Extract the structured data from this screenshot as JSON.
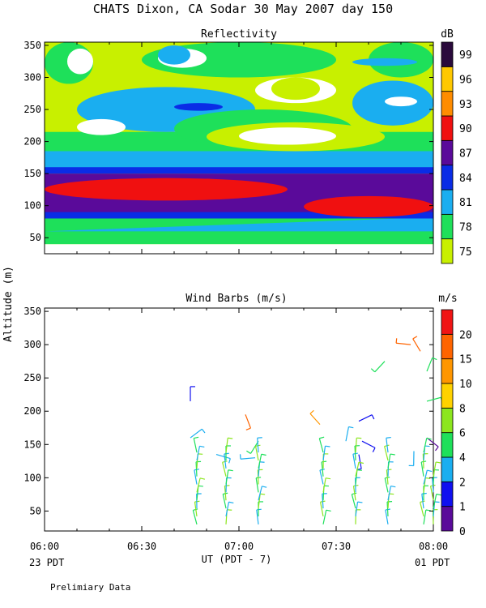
{
  "title": "CHATS Dixon, CA  Sodar  30 May 2007  day 150",
  "ylabel": "Altitude (m)",
  "xlabel": "UT  (PDT - 7)",
  "left_time_note": "23 PDT",
  "right_time_note": "01 PDT",
  "footer": "Prelimiary Data",
  "chart_data": [
    {
      "type": "heatmap",
      "title": "Reflectivity",
      "unit": "dB",
      "x": [
        "06:00",
        "06:05",
        "06:10",
        "06:15",
        "06:20",
        "06:25",
        "06:30",
        "06:35",
        "06:40",
        "06:45",
        "06:50",
        "06:55",
        "07:00",
        "07:05",
        "07:10",
        "07:15",
        "07:20",
        "07:25",
        "07:30",
        "07:35",
        "07:40",
        "07:45",
        "07:50",
        "07:55",
        "08:00"
      ],
      "y": [
        40,
        50,
        60,
        70,
        80,
        90,
        100,
        110,
        120,
        130,
        140,
        150,
        160,
        170,
        180,
        190,
        200,
        210,
        220,
        230,
        240,
        250,
        260,
        270,
        280,
        290,
        300,
        310,
        320,
        330,
        340,
        350
      ],
      "xticks": [
        "",
        "",
        "",
        "",
        "",
        ""
      ],
      "yticks": [
        "50",
        "100",
        "150",
        "200",
        "250",
        "300",
        "350"
      ],
      "ylim": [
        25,
        355
      ],
      "colorbar": {
        "labels": [
          "75",
          "78",
          "81",
          "84",
          "87",
          "90",
          "93",
          "96",
          "99"
        ],
        "colors": [
          "#c8f000",
          "#1ee05a",
          "#1aaef0",
          "#0a2ce6",
          "#5a0a9a",
          "#f01010",
          "#ff8c00",
          "#ffc800",
          "#2a0a3c"
        ]
      },
      "rows": [
        "1111111111111111111111111",
        "1111111111111111111111111",
        "1111112222222222222222222",
        "2222222222222233333333333",
        "3333333334444444444444444",
        "4444444444444455555544444",
        "5555555555555555555555555",
        "5555555555555555555555555",
        "4444444444444444444444444",
        "4444444444444444444444444",
        "3333333333333333333333333",
        "3333333333333333333333333",
        "2222222222222222222222222",
        "2222222222222222222222222",
        "1111111111111111111111111",
        "1111111111111111111111111",
        "1111111111111111111111111",
        "1111111111111111111111111",
        "1111111111111111111111111",
        "1111111111111111111111111",
        "1111111111111111111111111",
        "1111111111111111111111111",
        "1111111111111111111111111",
        "1111111111111111111111111",
        "1111111111111111111111111",
        "1111111111111111111111111",
        "1111111111111111111111111",
        "1111111111111111111111111",
        "1111111111111111111111111",
        "1111111111111111111111111",
        "1111111111111111111111111",
        "1111111111111111111111111"
      ],
      "patches": [
        {
          "c": 0,
          "x0": "06:00",
          "x1": "08:00",
          "y0": 40,
          "y1": 355,
          "shape": "rect"
        },
        {
          "c": 1,
          "x0": "06:00",
          "x1": "08:00",
          "y0": 40,
          "y1": 85,
          "shape": "rect"
        },
        {
          "c": 2,
          "x0": "06:00",
          "x1": "08:00",
          "y0": 60,
          "y1": 82,
          "shape": "wedge",
          "from": "right"
        },
        {
          "c": 3,
          "x0": "06:00",
          "x1": "08:00",
          "y0": 80,
          "y1": 140,
          "shape": "rect"
        },
        {
          "c": 4,
          "x0": "06:00",
          "x1": "08:00",
          "y0": 90,
          "y1": 150,
          "shape": "rect"
        },
        {
          "c": 5,
          "x0": "06:00",
          "x1": "07:15",
          "y0": 108,
          "y1": 143,
          "shape": "ellipse"
        },
        {
          "c": 5,
          "x0": "07:20",
          "x1": "08:00",
          "y0": 82,
          "y1": 115,
          "shape": "ellipse"
        },
        {
          "c": 3,
          "x0": "06:00",
          "x1": "08:00",
          "y0": 150,
          "y1": 185,
          "shape": "rect"
        },
        {
          "c": 2,
          "x0": "06:00",
          "x1": "08:00",
          "y0": 160,
          "y1": 200,
          "shape": "rect"
        },
        {
          "c": 1,
          "x0": "06:00",
          "x1": "08:00",
          "y0": 185,
          "y1": 215,
          "shape": "rect"
        },
        {
          "c": 2,
          "x0": "06:10",
          "x1": "07:05",
          "y0": 215,
          "y1": 285,
          "shape": "ellipse"
        },
        {
          "c": 2,
          "x0": "07:35",
          "x1": "08:00",
          "y0": 225,
          "y1": 295,
          "shape": "ellipse"
        },
        {
          "c": 1,
          "x0": "06:40",
          "x1": "07:35",
          "y0": 190,
          "y1": 250,
          "shape": "ellipse"
        },
        {
          "c": 0,
          "x0": "06:50",
          "x1": "07:45",
          "y0": 185,
          "y1": 230,
          "shape": "ellipse"
        },
        {
          "c": 9,
          "x0": "07:00",
          "x1": "07:30",
          "y0": 195,
          "y1": 222,
          "shape": "ellipse"
        },
        {
          "c": 9,
          "x0": "06:10",
          "x1": "06:25",
          "y0": 210,
          "y1": 235,
          "shape": "ellipse"
        },
        {
          "c": 3,
          "x0": "06:40",
          "x1": "06:55",
          "y0": 248,
          "y1": 260,
          "shape": "ellipse"
        },
        {
          "c": 1,
          "x0": "06:00",
          "x1": "06:15",
          "y0": 290,
          "y1": 355,
          "shape": "ellipse"
        },
        {
          "c": 9,
          "x0": "06:07",
          "x1": "06:15",
          "y0": 305,
          "y1": 345,
          "shape": "ellipse"
        },
        {
          "c": 1,
          "x0": "06:30",
          "x1": "07:30",
          "y0": 300,
          "y1": 355,
          "shape": "ellipse"
        },
        {
          "c": 9,
          "x0": "06:35",
          "x1": "06:50",
          "y0": 315,
          "y1": 345,
          "shape": "ellipse"
        },
        {
          "c": 2,
          "x0": "06:35",
          "x1": "06:45",
          "y0": 320,
          "y1": 350,
          "shape": "ellipse"
        },
        {
          "c": 9,
          "x0": "07:05",
          "x1": "07:30",
          "y0": 260,
          "y1": 300,
          "shape": "ellipse"
        },
        {
          "c": 0,
          "x0": "07:10",
          "x1": "07:25",
          "y0": 265,
          "y1": 300,
          "shape": "ellipse"
        },
        {
          "c": 1,
          "x0": "07:40",
          "x1": "08:00",
          "y0": 300,
          "y1": 355,
          "shape": "ellipse"
        },
        {
          "c": 9,
          "x0": "07:45",
          "x1": "07:55",
          "y0": 255,
          "y1": 270,
          "shape": "ellipse"
        },
        {
          "c": 2,
          "x0": "07:35",
          "x1": "07:55",
          "y0": 318,
          "y1": 330,
          "shape": "ellipse"
        }
      ]
    },
    {
      "type": "scatter",
      "title": "Wind Barbs (m/s)",
      "unit": "m/s",
      "xticks": [
        "06:00",
        "06:30",
        "07:00",
        "07:30",
        "08:00"
      ],
      "yticks": [
        "50",
        "100",
        "150",
        "200",
        "250",
        "300",
        "350"
      ],
      "ylim": [
        20,
        355
      ],
      "colorbar": {
        "labels": [
          "0",
          "1",
          "2",
          "4",
          "6",
          "8",
          "10",
          "15",
          "20"
        ],
        "colors": [
          "#5a0a9a",
          "#1010f0",
          "#1aaef0",
          "#1ee05a",
          "#8ce61e",
          "#ffd200",
          "#ff9600",
          "#ff6400",
          "#f01414"
        ]
      },
      "barbs": [
        {
          "t": "06:45",
          "h": 215,
          "c": 1
        },
        {
          "t": "06:45",
          "h": 160,
          "c": 2
        },
        {
          "t": "06:53",
          "h": 135,
          "c": 2
        },
        {
          "t": "07:02",
          "h": 195,
          "c": 7
        },
        {
          "t": "07:06",
          "h": 155,
          "c": 3
        },
        {
          "t": "07:05",
          "h": 130,
          "c": 2
        },
        {
          "t": "07:25",
          "h": 180,
          "c": 6
        },
        {
          "t": "07:33",
          "h": 155,
          "c": 2
        },
        {
          "t": "07:37",
          "h": 185,
          "c": 1
        },
        {
          "t": "07:38",
          "h": 155,
          "c": 1
        },
        {
          "t": "07:37",
          "h": 135,
          "c": 1
        },
        {
          "t": "07:45",
          "h": 275,
          "c": 3
        },
        {
          "t": "07:53",
          "h": 300,
          "c": 7
        },
        {
          "t": "07:56",
          "h": 290,
          "c": 7
        },
        {
          "t": "07:58",
          "h": 260,
          "c": 3
        },
        {
          "t": "07:58",
          "h": 215,
          "c": 3
        },
        {
          "t": "07:58",
          "h": 160,
          "c": 0
        },
        {
          "t": "07:54",
          "h": 140,
          "c": 2
        }
      ],
      "columns": [
        {
          "t": "06:47",
          "h0": 30,
          "h1": 145
        },
        {
          "t": "06:56",
          "h0": 30,
          "h1": 140
        },
        {
          "t": "07:06",
          "h0": 30,
          "h1": 140
        },
        {
          "t": "07:26",
          "h0": 30,
          "h1": 140
        },
        {
          "t": "07:36",
          "h0": 30,
          "h1": 140
        },
        {
          "t": "07:46",
          "h0": 30,
          "h1": 140
        },
        {
          "t": "07:57",
          "h0": 30,
          "h1": 145
        },
        {
          "t": "08:00",
          "h0": 30,
          "h1": 110
        }
      ]
    }
  ]
}
